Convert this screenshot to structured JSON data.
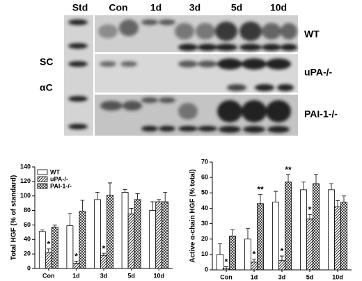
{
  "blot": {
    "lanes": [
      "Std",
      "Con",
      "1d",
      "3d",
      "5d",
      "10d"
    ],
    "genotypes": [
      "WT",
      "uPA-/-",
      "PAI-1-/-"
    ],
    "bands": [
      "SC",
      "αC"
    ]
  },
  "chart_data": [
    {
      "type": "bar",
      "y_label": "Total HGF (% of standard)",
      "categories": [
        "Con",
        "1d",
        "3d",
        "5d",
        "10d"
      ],
      "ylim": [
        0,
        140
      ],
      "yticks": [
        0,
        20,
        40,
        60,
        80,
        100,
        120,
        140
      ],
      "legend": "upper left",
      "series": [
        {
          "name": "WT",
          "color": "#000000",
          "hatch": "none",
          "values": [
            51,
            59,
            95,
            105,
            80
          ],
          "errors": [
            2,
            17,
            10,
            4,
            12
          ],
          "labels": [
            null,
            null,
            null,
            null,
            null
          ]
        },
        {
          "name": "uPA-/-",
          "color": "#000000",
          "hatch": "diagonal",
          "values": [
            22,
            7,
            18,
            75,
            92
          ],
          "errors": [
            5,
            3,
            3,
            8,
            3
          ],
          "labels": [
            "*",
            "*",
            "*",
            null,
            null
          ]
        },
        {
          "name": "PAI-1-/-",
          "color": "#000000",
          "hatch": "cross",
          "values": [
            57,
            79,
            101,
            95,
            92
          ],
          "errors": [
            3,
            15,
            17,
            8,
            13
          ],
          "labels": [
            null,
            null,
            null,
            null,
            null
          ]
        }
      ]
    },
    {
      "type": "bar",
      "y_label": "Active α-chain HGF (% total)",
      "categories": [
        "Con",
        "1d",
        "3d",
        "5d",
        "10d"
      ],
      "ylim": [
        0,
        70
      ],
      "yticks": [
        0,
        10,
        20,
        30,
        40,
        50,
        60,
        70
      ],
      "series": [
        {
          "name": "WT",
          "color": "#000000",
          "hatch": "none",
          "values": [
            10,
            20,
            44,
            52,
            52
          ],
          "errors": [
            7,
            7,
            7,
            5,
            4
          ],
          "labels": [
            null,
            null,
            null,
            null,
            null
          ]
        },
        {
          "name": "uPA-/-",
          "color": "#000000",
          "hatch": "diagonal",
          "values": [
            1,
            5,
            6,
            33,
            41
          ],
          "errors": [
            1,
            2,
            3,
            3,
            4
          ],
          "labels": [
            "*",
            "*",
            "*",
            "*",
            null
          ]
        },
        {
          "name": "PAI-1-/-",
          "color": "#000000",
          "hatch": "cross",
          "values": [
            22,
            43,
            57,
            56,
            44
          ],
          "errors": [
            4,
            6,
            5,
            6,
            4
          ],
          "labels": [
            null,
            "**",
            "**",
            null,
            null
          ]
        }
      ]
    }
  ]
}
